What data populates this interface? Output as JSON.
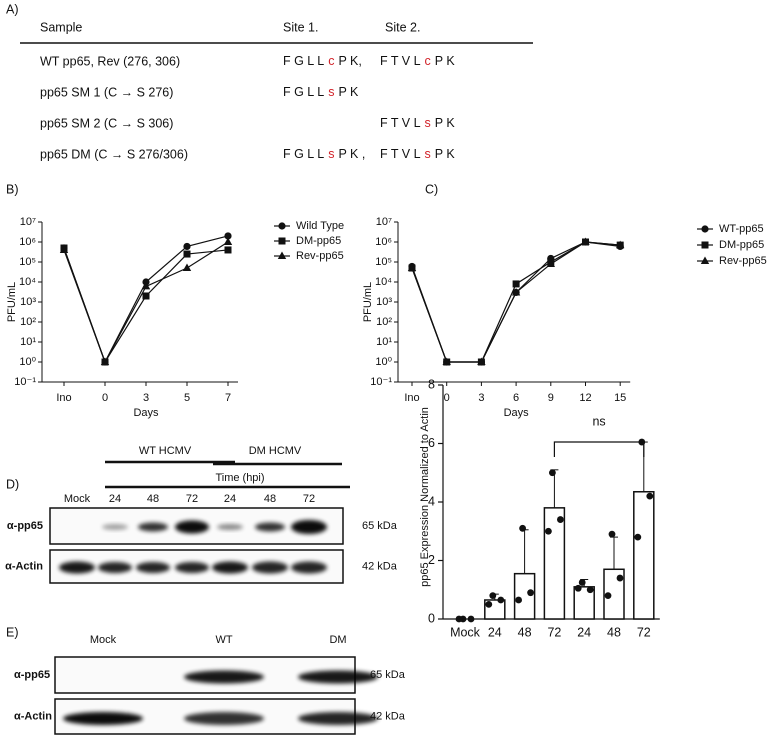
{
  "table": {
    "panel": "A)",
    "header": [
      "Sample",
      "Site 1.",
      "Site 2."
    ],
    "rows": [
      {
        "sample": "WT pp65, Rev (276, 306)",
        "site1": [
          "F G L L",
          "c",
          "P K,"
        ],
        "site2": [
          "F T V L",
          "c",
          "P K"
        ]
      },
      {
        "sample": "pp65 SM 1 (C → S 276)",
        "site1": [
          "F G L L",
          "s",
          "P K"
        ]
      },
      {
        "sample": "pp65 SM 2 (C → S 306)",
        "site2": [
          "F T V L",
          "s",
          "P K"
        ]
      },
      {
        "sample": "pp65 DM (C → S 276/306)",
        "site1": [
          "F G L L",
          "s",
          "P K ,"
        ],
        "site2": [
          "F T V L",
          "s",
          "P K"
        ]
      }
    ]
  },
  "chart_data": [
    {
      "type": "line",
      "panel": "B)",
      "x_label": "Days",
      "y_label": "PFU/mL",
      "log_y": true,
      "categories": [
        "Ino",
        "0",
        "3",
        "5",
        "7"
      ],
      "ylim": [
        0.1,
        10000000
      ],
      "yticks": [
        {
          "value": 0.1,
          "label": "10⁻¹"
        },
        {
          "value": 1,
          "label": "10⁰"
        },
        {
          "value": 10,
          "label": "10¹"
        },
        {
          "value": 100,
          "label": "10²"
        },
        {
          "value": 1000,
          "label": "10³"
        },
        {
          "value": 10000,
          "label": "10⁴"
        },
        {
          "value": 100000,
          "label": "10⁵"
        },
        {
          "value": 1000000,
          "label": "10⁶"
        },
        {
          "value": 10000000,
          "label": "10⁷"
        }
      ],
      "series": [
        {
          "name": "Wild Type",
          "marker": "circle",
          "color": "#111111",
          "values": [
            500000,
            1,
            10000,
            600000,
            2000000
          ]
        },
        {
          "name": "DM-pp65",
          "marker": "square",
          "color": "#111111",
          "values": [
            500000,
            1,
            2000,
            250000,
            400000
          ]
        },
        {
          "name": "Rev-pp65",
          "marker": "triangle",
          "color": "#111111",
          "values": [
            400000,
            1,
            6000,
            50000,
            1000000
          ]
        }
      ]
    },
    {
      "type": "line",
      "panel": "C)",
      "x_label": "Days",
      "y_label": "PFU/mL",
      "log_y": true,
      "categories": [
        "Ino",
        "0",
        "3",
        "6",
        "9",
        "12",
        "15"
      ],
      "ylim": [
        0.1,
        10000000
      ],
      "yticks": [
        {
          "value": 0.1,
          "label": "10⁻¹"
        },
        {
          "value": 1,
          "label": "10⁰"
        },
        {
          "value": 10,
          "label": "10¹"
        },
        {
          "value": 100,
          "label": "10²"
        },
        {
          "value": 1000,
          "label": "10³"
        },
        {
          "value": 10000,
          "label": "10⁴"
        },
        {
          "value": 100000,
          "label": "10⁵"
        },
        {
          "value": 1000000,
          "label": "10⁶"
        },
        {
          "value": 10000000,
          "label": "10⁷"
        }
      ],
      "series": [
        {
          "name": "WT-pp65",
          "marker": "circle",
          "color": "#111111",
          "values": [
            60000,
            1,
            1,
            3000,
            150000,
            1000000,
            600000
          ]
        },
        {
          "name": "DM-pp65",
          "marker": "square",
          "color": "#111111",
          "values": [
            50000,
            1,
            1,
            8000,
            100000,
            1000000,
            700000
          ]
        },
        {
          "name": "Rev-pp65",
          "marker": "triangle",
          "color": "#111111",
          "values": [
            50000,
            1,
            1,
            3000,
            80000,
            1000000,
            700000
          ]
        }
      ]
    },
    {
      "type": "bar",
      "y_label": "pp65 Expression Normalized to Actin",
      "categories": [
        "Mock",
        "24",
        "48",
        "72",
        "24",
        "48",
        "72"
      ],
      "values": [
        0,
        0.65,
        1.55,
        3.8,
        1.1,
        1.7,
        4.35
      ],
      "errors": [
        0,
        0.2,
        1.5,
        1.3,
        0.25,
        1.1,
        1.7
      ],
      "points": [
        [
          0,
          0,
          0
        ],
        [
          0.8,
          0.65,
          0.5
        ],
        [
          3.1,
          0.9,
          0.65
        ],
        [
          5,
          3.4,
          3
        ],
        [
          1.25,
          1,
          1.05
        ],
        [
          2.9,
          1.4,
          0.8
        ],
        [
          6.05,
          4.2,
          2.8
        ]
      ],
      "color": "#ffffff",
      "ylim": [
        0,
        8
      ],
      "yticks": [
        0,
        2,
        4,
        6,
        8
      ],
      "annotation": {
        "text": "ns",
        "between": [
          3,
          6
        ]
      }
    }
  ],
  "blots": [
    {
      "panel": "D)",
      "groups": [
        "WT HCMV",
        "DM HCMV"
      ],
      "time_label": "Time (hpi)",
      "lanes": [
        "Mock",
        "24",
        "48",
        "72",
        "24",
        "48",
        "72"
      ],
      "rows": [
        {
          "antibody": "α-pp65",
          "size": "65 kDa"
        },
        {
          "antibody": "α-Actin",
          "size": "42 kDa"
        }
      ]
    },
    {
      "panel": "E)",
      "lanes": [
        "Mock",
        "WT",
        "DM"
      ],
      "rows": [
        {
          "antibody": "α-pp65",
          "size": "65 kDa"
        },
        {
          "antibody": "α-Actin",
          "size": "42 kDa"
        }
      ]
    }
  ]
}
